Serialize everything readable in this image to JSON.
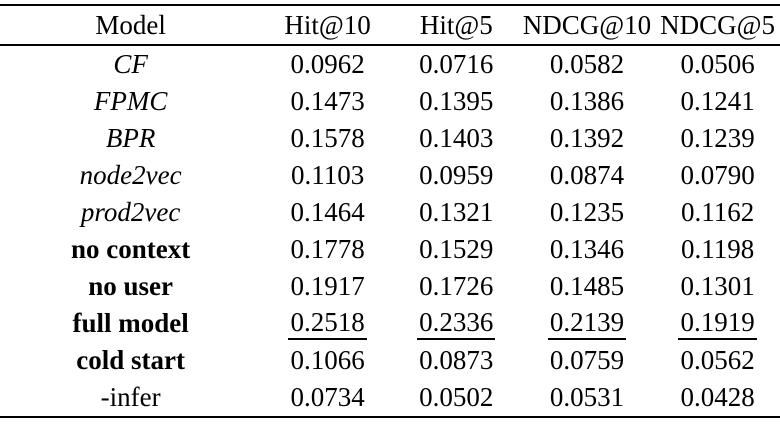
{
  "table": {
    "columns": [
      "Model",
      "Hit@10",
      "Hit@5",
      "NDCG@10",
      "NDCG@5"
    ],
    "rows": [
      {
        "model": "CF",
        "style": "italic",
        "underline": false,
        "values": [
          "0.0962",
          "0.0716",
          "0.0582",
          "0.0506"
        ]
      },
      {
        "model": "FPMC",
        "style": "italic",
        "underline": false,
        "values": [
          "0.1473",
          "0.1395",
          "0.1386",
          "0.1241"
        ]
      },
      {
        "model": "BPR",
        "style": "italic",
        "underline": false,
        "values": [
          "0.1578",
          "0.1403",
          "0.1392",
          "0.1239"
        ]
      },
      {
        "model": "node2vec",
        "style": "italic",
        "underline": false,
        "values": [
          "0.1103",
          "0.0959",
          "0.0874",
          "0.0790"
        ]
      },
      {
        "model": "prod2vec",
        "style": "italic",
        "underline": false,
        "values": [
          "0.1464",
          "0.1321",
          "0.1235",
          "0.1162"
        ]
      },
      {
        "model": "no context",
        "style": "bold",
        "underline": false,
        "values": [
          "0.1778",
          "0.1529",
          "0.1346",
          "0.1198"
        ]
      },
      {
        "model": "no user",
        "style": "bold",
        "underline": false,
        "values": [
          "0.1917",
          "0.1726",
          "0.1485",
          "0.1301"
        ]
      },
      {
        "model": "full model",
        "style": "bold",
        "underline": true,
        "values": [
          "0.2518",
          "0.2336",
          "0.2139",
          "0.1919"
        ]
      },
      {
        "model": "cold start",
        "style": "bold",
        "underline": false,
        "values": [
          "0.1066",
          "0.0873",
          "0.0759",
          "0.0562"
        ]
      },
      {
        "model": "-infer",
        "style": "regular",
        "underline": false,
        "values": [
          "0.0734",
          "0.0502",
          "0.0531",
          "0.0428"
        ]
      }
    ],
    "colors": {
      "text": "#000000",
      "background": "#ffffff",
      "rule": "#000000"
    }
  },
  "chart_data": {
    "type": "table",
    "title": "",
    "columns": [
      "Model",
      "Hit@10",
      "Hit@5",
      "NDCG@10",
      "NDCG@5"
    ],
    "series": [
      {
        "name": "Hit@10",
        "values": [
          0.0962,
          0.1473,
          0.1578,
          0.1103,
          0.1464,
          0.1778,
          0.1917,
          0.2518,
          0.1066,
          0.0734
        ]
      },
      {
        "name": "Hit@5",
        "values": [
          0.0716,
          0.1395,
          0.1403,
          0.0959,
          0.1321,
          0.1529,
          0.1726,
          0.2336,
          0.0873,
          0.0502
        ]
      },
      {
        "name": "NDCG@10",
        "values": [
          0.0582,
          0.1386,
          0.1392,
          0.0874,
          0.1235,
          0.1346,
          0.1485,
          0.2139,
          0.0759,
          0.0531
        ]
      },
      {
        "name": "NDCG@5",
        "values": [
          0.0506,
          0.1241,
          0.1239,
          0.079,
          0.1162,
          0.1198,
          0.1301,
          0.1919,
          0.0562,
          0.0428
        ]
      }
    ],
    "categories": [
      "CF",
      "FPMC",
      "BPR",
      "node2vec",
      "prod2vec",
      "no context",
      "no user",
      "full model",
      "cold start",
      "-infer"
    ],
    "best_row": "full model"
  }
}
